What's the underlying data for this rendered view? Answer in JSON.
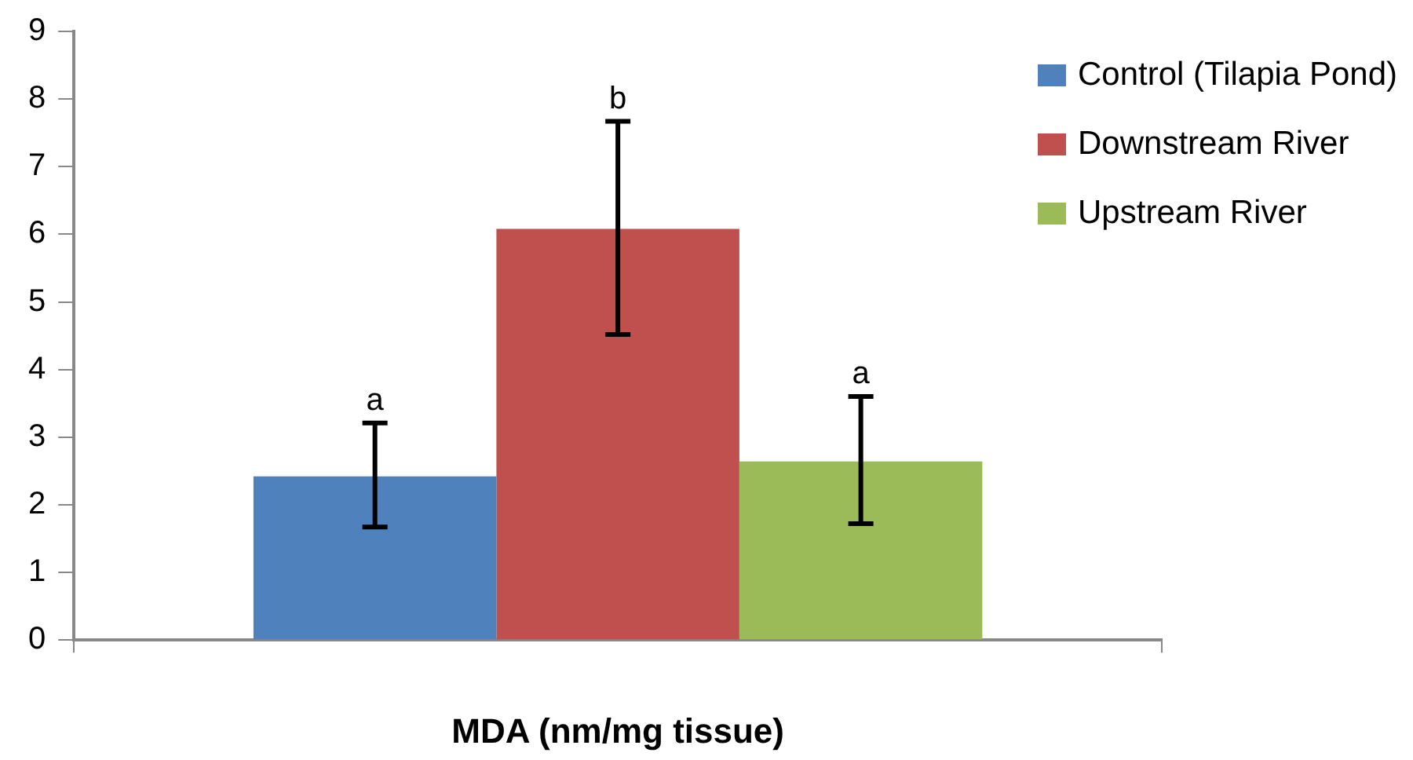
{
  "chart_data": {
    "type": "bar",
    "xlabel": "MDA (nm/mg tissue)",
    "categories": [
      null
    ],
    "series": [
      {
        "name": "Control (Tilapia Pond)",
        "color": "#4f81bd",
        "values": [
          2.42
        ],
        "errors": [
          [
            1.67,
            3.21
          ]
        ]
      },
      {
        "name": "Downstream River",
        "color": "#c0504d",
        "values": [
          6.08
        ],
        "errors": [
          [
            4.52,
            7.67
          ]
        ]
      },
      {
        "name": "Upstream River",
        "color": "#9bbb59",
        "values": [
          2.64
        ],
        "errors": [
          [
            1.72,
            3.6
          ]
        ]
      }
    ],
    "annotations": [
      "a",
      "b",
      "a"
    ],
    "ylim": [
      0,
      9
    ],
    "yticks": [
      0,
      1,
      2,
      3,
      4,
      5,
      6,
      7,
      8,
      9
    ],
    "grid": false,
    "legend": "top right"
  }
}
